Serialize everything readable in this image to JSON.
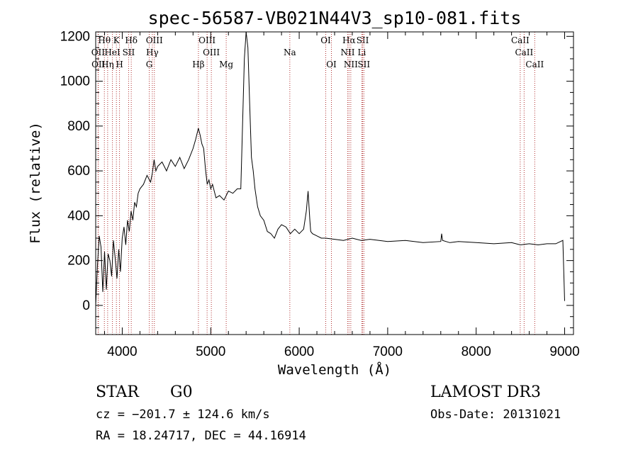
{
  "chart_data": {
    "type": "line",
    "title": "spec-56587-VB021N44V3_sp10-081.fits",
    "xlabel": "Wavelength (Å)",
    "ylabel": "Flux (relative)",
    "xlim": [
      3700,
      9100
    ],
    "ylim": [
      -130,
      1220
    ],
    "xticks": [
      4000,
      5000,
      6000,
      7000,
      8000,
      9000
    ],
    "xtick_labels": [
      "4000",
      "5000",
      "6000",
      "7000",
      "8000",
      "9000"
    ],
    "yticks": [
      0,
      200,
      400,
      600,
      800,
      1000,
      1200
    ],
    "ytick_labels": [
      "0",
      "200",
      "400",
      "600",
      "800",
      "1000",
      "1200"
    ],
    "spectral_lines": [
      {
        "label": "Hθ",
        "wavelength": 3798,
        "row": 0
      },
      {
        "label": "K",
        "wavelength": 3934,
        "row": 0
      },
      {
        "label": "Hδ",
        "wavelength": 4102,
        "row": 0
      },
      {
        "label": "OIII",
        "wavelength": 4363,
        "row": 0
      },
      {
        "label": "OIII",
        "wavelength": 4959,
        "row": 0
      },
      {
        "label": "OI",
        "wavelength": 6300,
        "row": 0
      },
      {
        "label": "Hα",
        "wavelength": 6563,
        "row": 0
      },
      {
        "label": "SII",
        "wavelength": 6717,
        "row": 0
      },
      {
        "label": "CaII",
        "wavelength": 8498,
        "row": 0
      },
      {
        "label": "OII",
        "wavelength": 3727,
        "row": 1
      },
      {
        "label": "HeI",
        "wavelength": 3889,
        "row": 1
      },
      {
        "label": "SII",
        "wavelength": 4072,
        "row": 1
      },
      {
        "label": "Hγ",
        "wavelength": 4340,
        "row": 1
      },
      {
        "label": "OIII",
        "wavelength": 5007,
        "row": 1
      },
      {
        "label": "NII",
        "wavelength": 6548,
        "row": 1
      },
      {
        "label": "Li",
        "wavelength": 6708,
        "row": 1
      },
      {
        "label": "CaII",
        "wavelength": 8542,
        "row": 1
      },
      {
        "label": "OII",
        "wavelength": 3730,
        "row": 2
      },
      {
        "label": "Hη",
        "wavelength": 3835,
        "row": 2
      },
      {
        "label": "H",
        "wavelength": 3969,
        "row": 2
      },
      {
        "label": "G",
        "wavelength": 4305,
        "row": 2
      },
      {
        "label": "Hβ",
        "wavelength": 4861,
        "row": 2
      },
      {
        "label": "Mg",
        "wavelength": 5175,
        "row": 2
      },
      {
        "label": "Na",
        "wavelength": 5894,
        "row": 1
      },
      {
        "label": "OI",
        "wavelength": 6364,
        "row": 2
      },
      {
        "label": "NII",
        "wavelength": 6583,
        "row": 2
      },
      {
        "label": "SII",
        "wavelength": 6731,
        "row": 2
      },
      {
        "label": "CaII",
        "wavelength": 8662,
        "row": 2
      }
    ],
    "series": [
      {
        "name": "flux",
        "x": [
          3700,
          3720,
          3740,
          3760,
          3780,
          3800,
          3820,
          3840,
          3860,
          3880,
          3900,
          3920,
          3940,
          3960,
          3980,
          4000,
          4020,
          4040,
          4060,
          4080,
          4100,
          4120,
          4140,
          4160,
          4180,
          4200,
          4240,
          4280,
          4320,
          4340,
          4360,
          4380,
          4400,
          4450,
          4500,
          4550,
          4600,
          4650,
          4700,
          4750,
          4800,
          4830,
          4860,
          4880,
          4900,
          4920,
          4940,
          4960,
          4980,
          5000,
          5020,
          5060,
          5100,
          5150,
          5200,
          5250,
          5300,
          5340,
          5380,
          5400,
          5420,
          5440,
          5460,
          5480,
          5500,
          5530,
          5560,
          5600,
          5640,
          5680,
          5720,
          5760,
          5800,
          5850,
          5900,
          5950,
          6000,
          6050,
          6080,
          6100,
          6120,
          6130,
          6150,
          6200,
          6250,
          6300,
          6400,
          6500,
          6600,
          6700,
          6800,
          7000,
          7200,
          7400,
          7600,
          7610,
          7620,
          7700,
          7800,
          8000,
          8200,
          8400,
          8500,
          8600,
          8700,
          8800,
          8900,
          8980,
          9000
        ],
        "values": [
          0,
          180,
          310,
          260,
          60,
          240,
          70,
          230,
          200,
          130,
          290,
          210,
          120,
          250,
          150,
          300,
          350,
          270,
          380,
          330,
          420,
          380,
          460,
          440,
          500,
          520,
          540,
          580,
          550,
          590,
          650,
          600,
          620,
          640,
          600,
          650,
          620,
          660,
          610,
          650,
          700,
          740,
          790,
          760,
          720,
          700,
          610,
          540,
          560,
          520,
          540,
          480,
          490,
          470,
          510,
          500,
          520,
          520,
          1100,
          1220,
          1150,
          900,
          660,
          600,
          520,
          440,
          400,
          380,
          330,
          320,
          300,
          340,
          360,
          350,
          320,
          340,
          320,
          340,
          420,
          510,
          380,
          330,
          320,
          310,
          300,
          300,
          295,
          290,
          300,
          290,
          295,
          285,
          290,
          280,
          285,
          320,
          290,
          280,
          285,
          280,
          275,
          280,
          270,
          275,
          270,
          275,
          275,
          290,
          20
        ]
      }
    ]
  },
  "info": {
    "object_class": "STAR",
    "subclass": "G0",
    "survey": "LAMOST DR3",
    "redshift": "cz = −201.7 ± 124.6 km/s",
    "obs_date": "Obs-Date: 20131021",
    "coords": "RA =  18.24717, DEC =  44.16914"
  },
  "colors": {
    "line_marker": "#b03030",
    "spectrum": "#000000",
    "axes": "#000000"
  }
}
